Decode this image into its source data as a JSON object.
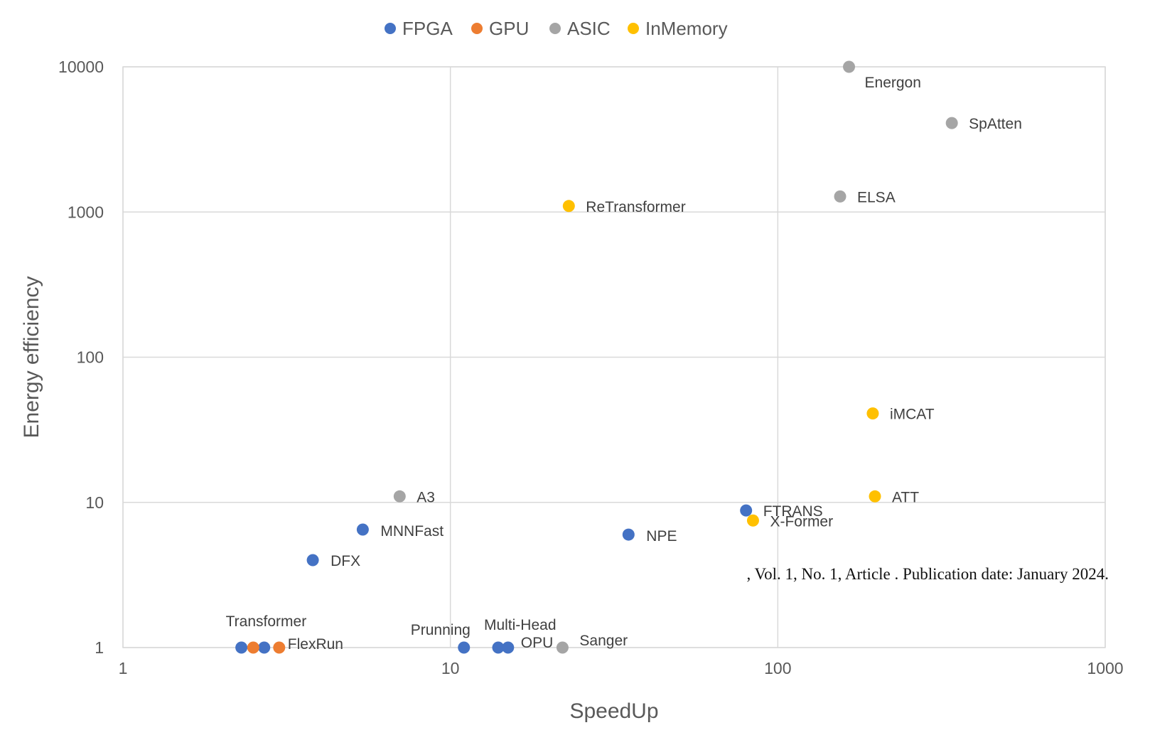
{
  "chart_data": {
    "type": "scatter",
    "title": "",
    "xlabel": "SpeedUp",
    "ylabel": "Energy efficiency",
    "xscale": "log",
    "yscale": "log",
    "xlim": [
      1,
      1000
    ],
    "ylim": [
      1,
      10000
    ],
    "x_ticks": [
      "1",
      "10",
      "100",
      "1000"
    ],
    "y_ticks": [
      "1",
      "10",
      "100",
      "1000",
      "10000"
    ],
    "grid": true,
    "legend_position": "top",
    "series": [
      {
        "name": "FPGA",
        "color": "#4472C4",
        "points": [
          {
            "x": 2.3,
            "y": 1,
            "label": "Transformer"
          },
          {
            "x": 2.7,
            "y": 1,
            "label": ""
          },
          {
            "x": 3.8,
            "y": 4,
            "label": "DFX"
          },
          {
            "x": 5.4,
            "y": 6.5,
            "label": "MNNFast"
          },
          {
            "x": 11,
            "y": 1,
            "label": "Prunning"
          },
          {
            "x": 14,
            "y": 1,
            "label": "Multi-Head"
          },
          {
            "x": 15,
            "y": 1,
            "label": "OPU"
          },
          {
            "x": 35,
            "y": 6,
            "label": "NPE"
          },
          {
            "x": 80,
            "y": 8.8,
            "label": "FTRANS"
          }
        ]
      },
      {
        "name": "GPU",
        "color": "#ED7D31",
        "points": [
          {
            "x": 2.5,
            "y": 1,
            "label": ""
          },
          {
            "x": 3,
            "y": 1,
            "label": "FlexRun"
          }
        ]
      },
      {
        "name": "ASIC",
        "color": "#A5A5A5",
        "points": [
          {
            "x": 7,
            "y": 11,
            "label": "A3"
          },
          {
            "x": 22,
            "y": 1,
            "label": "Sanger"
          },
          {
            "x": 155,
            "y": 1280,
            "label": "ELSA"
          },
          {
            "x": 165,
            "y": 10000,
            "label": "Energon"
          },
          {
            "x": 340,
            "y": 4100,
            "label": "SpAtten"
          }
        ]
      },
      {
        "name": "InMemory",
        "color": "#FFC000",
        "points": [
          {
            "x": 23,
            "y": 1100,
            "label": "ReTransformer"
          },
          {
            "x": 84,
            "y": 7.5,
            "label": "X-Former"
          },
          {
            "x": 195,
            "y": 41,
            "label": "iMCAT"
          },
          {
            "x": 198,
            "y": 11,
            "label": "ATT"
          }
        ]
      }
    ]
  },
  "footer": {
    "text": ", Vol. 1, No. 1, Article . Publication date: January 2024."
  }
}
